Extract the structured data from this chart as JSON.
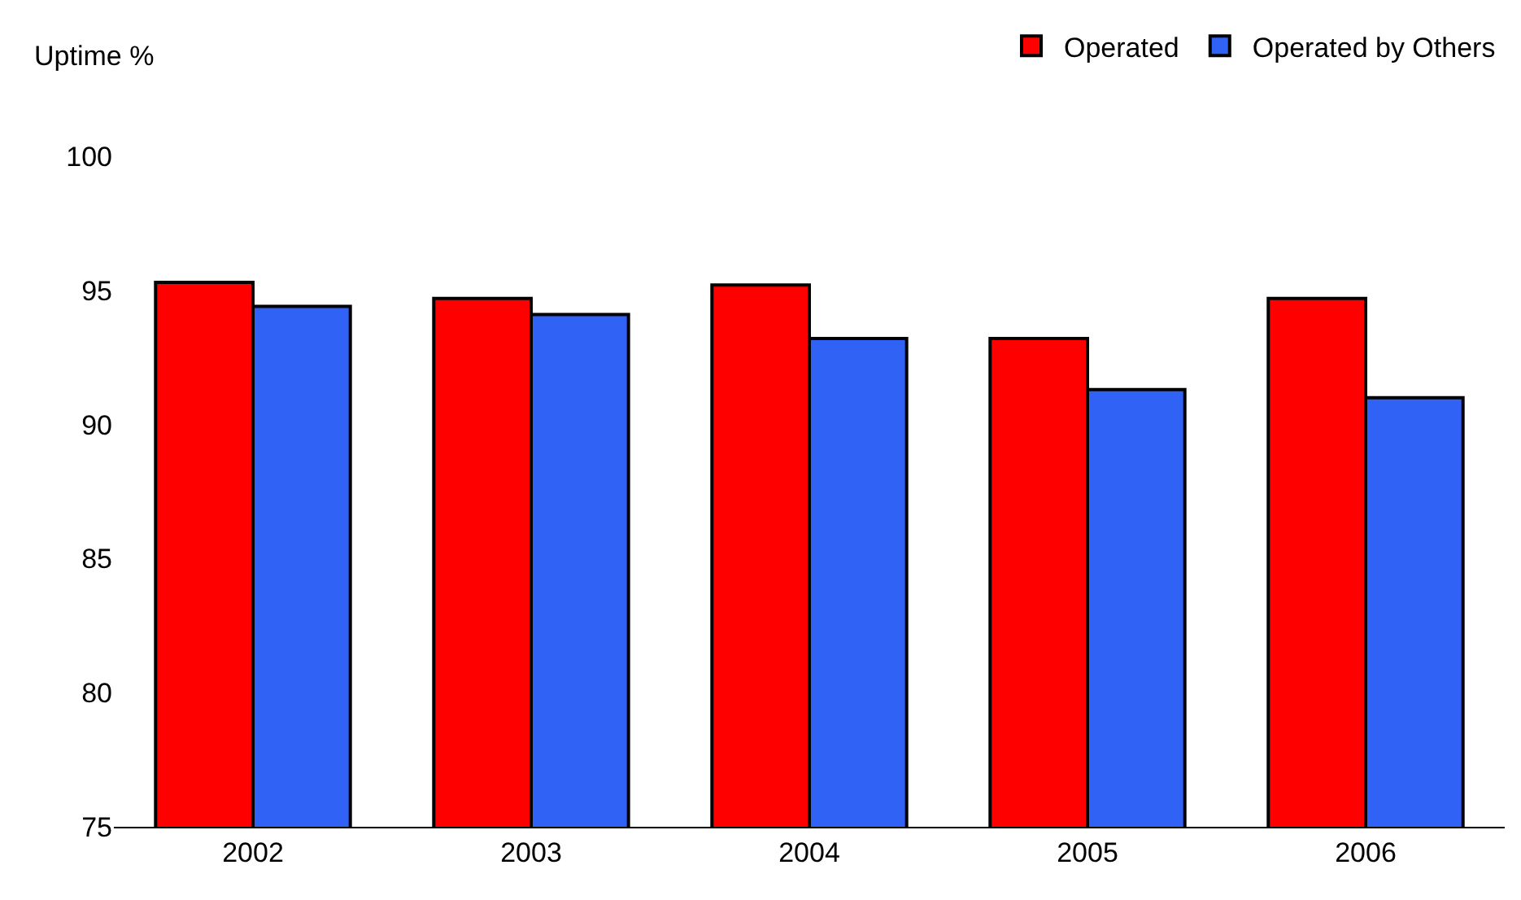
{
  "chart_data": {
    "type": "bar",
    "ylabel": "Uptime %",
    "categories": [
      "2002",
      "2003",
      "2004",
      "2005",
      "2006"
    ],
    "series": [
      {
        "name": "Operated",
        "color": "#ff0000",
        "values": [
          95.3,
          94.7,
          95.2,
          93.2,
          94.7
        ]
      },
      {
        "name": "Operated by Others",
        "color": "#2f62f5",
        "values": [
          94.4,
          94.1,
          93.2,
          91.3,
          91.0
        ]
      }
    ],
    "ylim": [
      75,
      100
    ],
    "yticks": [
      75,
      80,
      85,
      90,
      95,
      100
    ],
    "grid": false,
    "legend": "top right"
  }
}
